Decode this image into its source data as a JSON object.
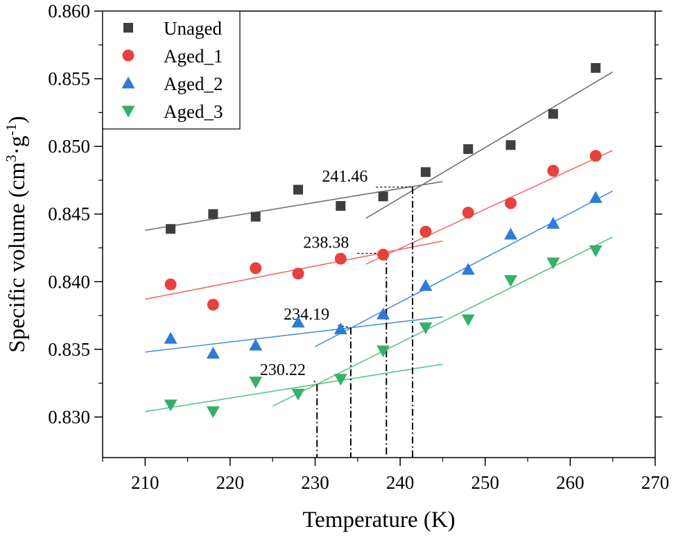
{
  "chart_data": {
    "type": "scatter",
    "xlabel": "Temperature (K)",
    "ylabel": {
      "main": "Specific volume (cm",
      "sup1": "3",
      "mid": "·g",
      "sup2": "-1",
      "end": ")"
    },
    "xlim": [
      205,
      270
    ],
    "ylim": [
      0.827,
      0.86
    ],
    "xticks": [
      210,
      220,
      230,
      240,
      250,
      260,
      270
    ],
    "yticks": [
      0.83,
      0.835,
      0.84,
      0.845,
      0.85,
      0.855,
      0.86
    ],
    "ytick_labels": [
      "0.830",
      "0.835",
      "0.840",
      "0.845",
      "0.850",
      "0.855",
      "0.860"
    ],
    "x": [
      213,
      218,
      223,
      228,
      233,
      238,
      243,
      248,
      253,
      258,
      263
    ],
    "series": [
      {
        "name": "Unaged",
        "marker": "square",
        "color": "#3f3f3f",
        "line_color": "#707070",
        "values": [
          0.8439,
          0.845,
          0.8448,
          0.8468,
          0.8456,
          0.8463,
          0.8481,
          0.8498,
          0.8501,
          0.8524,
          0.8558
        ],
        "fit_low": {
          "x": [
            210,
            245
          ],
          "y": [
            0.8438,
            0.8474
          ]
        },
        "fit_high": {
          "x": [
            236,
            265
          ],
          "y": [
            0.8447,
            0.8555
          ]
        }
      },
      {
        "name": "Aged_1",
        "marker": "circle",
        "color": "#e8403f",
        "line_color": "#f06a6a",
        "values": [
          0.8398,
          0.8383,
          0.841,
          0.8406,
          0.8417,
          0.842,
          0.8437,
          0.8451,
          0.8458,
          0.8482,
          0.8493
        ],
        "fit_low": {
          "x": [
            210,
            245
          ],
          "y": [
            0.8387,
            0.843
          ]
        },
        "fit_high": {
          "x": [
            236,
            265
          ],
          "y": [
            0.8413,
            0.8497
          ]
        }
      },
      {
        "name": "Aged_2",
        "marker": "triangle-up",
        "color": "#2e7bd6",
        "line_color": "#4a90e2",
        "values": [
          0.8358,
          0.8347,
          0.8353,
          0.837,
          0.8365,
          0.8376,
          0.8397,
          0.8409,
          0.8435,
          0.8443,
          0.8462
        ],
        "fit_low": {
          "x": [
            210,
            245
          ],
          "y": [
            0.8348,
            0.8374
          ]
        },
        "fit_high": {
          "x": [
            230,
            265
          ],
          "y": [
            0.8352,
            0.8467
          ]
        }
      },
      {
        "name": "Aged_3",
        "marker": "triangle-down",
        "color": "#35b06a",
        "line_color": "#5cc488",
        "values": [
          0.8309,
          0.8304,
          0.8326,
          0.8317,
          0.8328,
          0.8349,
          0.8366,
          0.8372,
          0.8401,
          0.8414,
          0.8423
        ],
        "fit_low": {
          "x": [
            210,
            245
          ],
          "y": [
            0.8304,
            0.8339
          ]
        },
        "fit_high": {
          "x": [
            225,
            265
          ],
          "y": [
            0.8308,
            0.8433
          ]
        }
      }
    ],
    "annotations": [
      {
        "label": "241.46",
        "x": 241.46,
        "y": 0.847,
        "text_x": 230.8,
        "text_y": 0.8474,
        "color": "#707070"
      },
      {
        "label": "238.38",
        "x": 238.38,
        "y": 0.8421,
        "text_x": 228.6,
        "text_y": 0.8425,
        "color": "#f06a6a"
      },
      {
        "label": "234.19",
        "x": 234.19,
        "y": 0.8366,
        "text_x": 226.3,
        "text_y": 0.8372,
        "color": "#4a90e2"
      },
      {
        "label": "230.22",
        "x": 230.22,
        "y": 0.8324,
        "text_x": 223.5,
        "text_y": 0.8331,
        "color": "#5cc488"
      }
    ],
    "legend_position": "top-left"
  }
}
